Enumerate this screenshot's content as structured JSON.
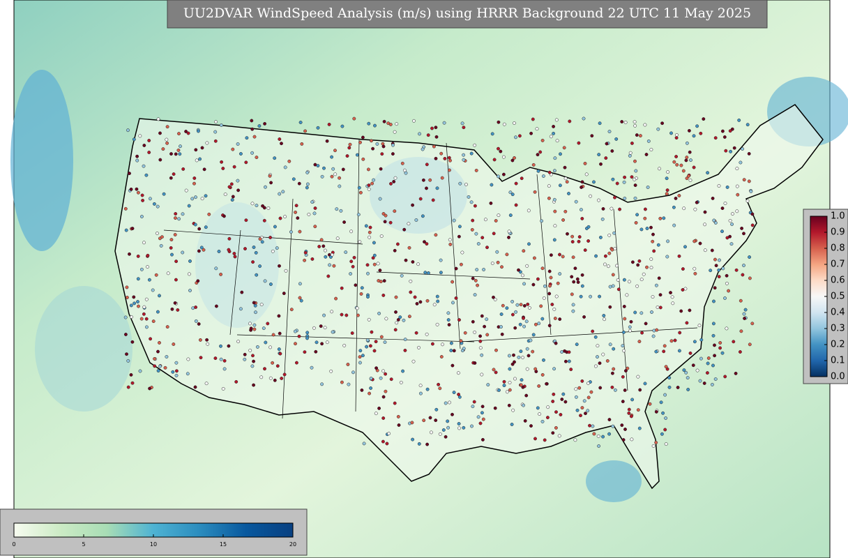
{
  "title": "UU2DVAR WindSpeed Analysis (m/s) using HRRR Background 22 UTC 11 May 2025",
  "wind_colorbar": {
    "lim": [
      0,
      20
    ],
    "ticks": [
      0,
      5,
      10,
      15,
      20
    ],
    "colors": [
      "#f7fcf0",
      "#ccebc5",
      "#a8ddb5",
      "#4eb3d3",
      "#2b8cbe",
      "#08589e",
      "#084081"
    ]
  },
  "score_colorbar": {
    "lim": [
      0,
      1
    ],
    "ticks": [
      {
        "value": 0,
        "label": "0.0"
      },
      0.1,
      0.2,
      0.3,
      0.4,
      0.5,
      0.6,
      0.7,
      0.8,
      0.9,
      {
        "value": 1,
        "label": "1.0"
      }
    ],
    "colors": [
      "#053061",
      "#2166ac",
      "#4393c3",
      "#92c5de",
      "#d1e5f0",
      "#f7f7f7",
      "#fddbc7",
      "#f4a582",
      "#d6604d",
      "#b2182b",
      "#67001f"
    ]
  }
}
